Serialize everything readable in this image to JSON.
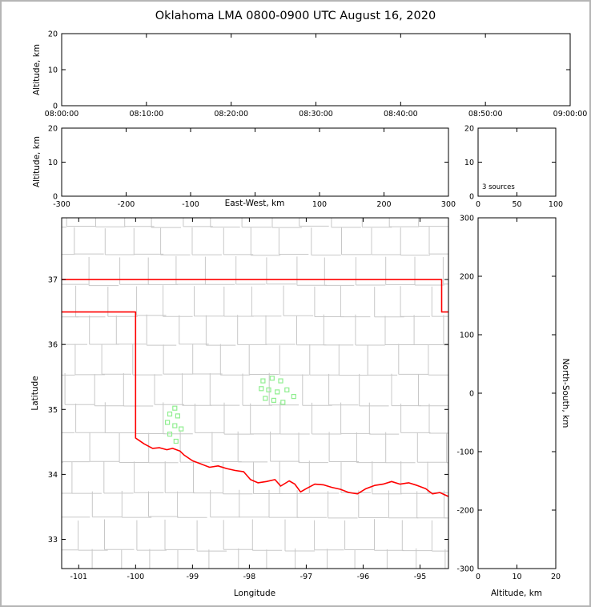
{
  "title": "Oklahoma LMA 0800-0900 UTC August 16, 2020",
  "colors": {
    "background": "#ffffff",
    "frame_border": "#b5b5b5",
    "axis_color": "#000000",
    "county_line_color": "#c8c8c8",
    "state_border_color": "#ff0000",
    "marker_color": "#90ee90"
  },
  "labels": {
    "time_height_ylabel": "Altitude, km",
    "ew_height_ylabel": "Altitude, km",
    "ew_height_xlabel": "East-West, km",
    "map_xlabel": "Longitude",
    "map_ylabel": "Latitude",
    "ns_height_xlabel": "Altitude, km",
    "ns_height_ylabel": "North-South, km"
  },
  "chart_data": [
    {
      "id": "time_height",
      "type": "scatter",
      "x": {
        "range": [
          0,
          3600
        ],
        "ticks": [
          0,
          600,
          1200,
          1800,
          2400,
          3000,
          3600
        ],
        "tick_labels": [
          "08:00:00",
          "08:10:00",
          "08:20:00",
          "08:30:00",
          "08:40:00",
          "08:50:00",
          "09:00:00"
        ]
      },
      "y": {
        "label": "Altitude, km",
        "range": [
          0,
          20
        ],
        "ticks": [
          0,
          10,
          20
        ],
        "tick_labels": [
          "0",
          "10",
          "20"
        ]
      },
      "points": []
    },
    {
      "id": "ew_height",
      "type": "scatter",
      "x": {
        "label": "East-West, km",
        "range": [
          -300,
          300
        ],
        "ticks": [
          -300,
          -200,
          -100,
          0,
          100,
          200,
          300
        ],
        "tick_labels": [
          "-300",
          "-200",
          "-100",
          "",
          "100",
          "200",
          "300"
        ]
      },
      "y": {
        "label": "Altitude, km",
        "range": [
          0,
          20
        ],
        "ticks": [
          0,
          10,
          20
        ],
        "tick_labels": [
          "0",
          "10",
          "20"
        ]
      },
      "points": []
    },
    {
      "id": "source_histogram",
      "type": "scatter",
      "annotation": "3 sources",
      "x": {
        "range": [
          0,
          100
        ],
        "ticks": [
          0,
          50,
          100
        ],
        "tick_labels": [
          "0",
          "50",
          "100"
        ]
      },
      "y": {
        "range": [
          0,
          20
        ],
        "ticks": [
          0,
          10,
          20
        ],
        "tick_labels": [
          "0",
          "10",
          "20"
        ]
      },
      "points": []
    },
    {
      "id": "plan_view_map",
      "type": "scatter",
      "x": {
        "label": "Longitude",
        "range": [
          -101.3,
          -94.5
        ],
        "ticks": [
          -101,
          -100,
          -99,
          -98,
          -97,
          -96,
          -95
        ],
        "tick_labels": [
          "-101",
          "-100",
          "-99",
          "-98",
          "-97",
          "-96",
          "-95"
        ]
      },
      "y": {
        "label": "Latitude",
        "range": [
          32.55,
          37.95
        ],
        "ticks": [
          33,
          34,
          35,
          36,
          37
        ],
        "tick_labels": [
          "33",
          "34",
          "35",
          "36",
          "37"
        ]
      },
      "points": [
        [
          -99.31,
          35.02
        ],
        [
          -99.4,
          34.93
        ],
        [
          -99.26,
          34.9
        ],
        [
          -99.44,
          34.8
        ],
        [
          -99.31,
          34.75
        ],
        [
          -99.2,
          34.7
        ],
        [
          -99.4,
          34.62
        ],
        [
          -99.29,
          34.51
        ],
        [
          -97.76,
          35.44
        ],
        [
          -97.6,
          35.48
        ],
        [
          -97.45,
          35.44
        ],
        [
          -97.79,
          35.32
        ],
        [
          -97.66,
          35.3
        ],
        [
          -97.51,
          35.27
        ],
        [
          -97.34,
          35.3
        ],
        [
          -97.72,
          35.17
        ],
        [
          -97.57,
          35.14
        ],
        [
          -97.41,
          35.11
        ],
        [
          -97.22,
          35.2
        ]
      ],
      "state_boundary": [
        [
          [
            -101.3,
            37.0
          ],
          [
            -94.62,
            37.0
          ],
          [
            -94.62,
            36.5
          ],
          [
            -94.5,
            36.5
          ]
        ],
        [
          [
            -101.3,
            36.5
          ],
          [
            -100.0,
            36.5
          ],
          [
            -100.0,
            34.56
          ],
          [
            -99.95,
            34.53
          ],
          [
            -99.85,
            34.47
          ],
          [
            -99.7,
            34.4
          ],
          [
            -99.58,
            34.41
          ],
          [
            -99.45,
            34.38
          ],
          [
            -99.35,
            34.4
          ],
          [
            -99.22,
            34.36
          ],
          [
            -99.15,
            34.3
          ],
          [
            -99.0,
            34.21
          ],
          [
            -98.85,
            34.16
          ],
          [
            -98.7,
            34.11
          ],
          [
            -98.55,
            34.13
          ],
          [
            -98.4,
            34.09
          ],
          [
            -98.25,
            34.06
          ],
          [
            -98.1,
            34.04
          ],
          [
            -97.98,
            33.92
          ],
          [
            -97.85,
            33.87
          ],
          [
            -97.7,
            33.89
          ],
          [
            -97.55,
            33.92
          ],
          [
            -97.45,
            33.82
          ],
          [
            -97.3,
            33.9
          ],
          [
            -97.2,
            33.85
          ],
          [
            -97.1,
            33.73
          ],
          [
            -97.0,
            33.78
          ],
          [
            -96.85,
            33.85
          ],
          [
            -96.7,
            33.84
          ],
          [
            -96.55,
            33.8
          ],
          [
            -96.4,
            33.77
          ],
          [
            -96.25,
            33.72
          ],
          [
            -96.1,
            33.7
          ],
          [
            -95.95,
            33.78
          ],
          [
            -95.8,
            33.83
          ],
          [
            -95.65,
            33.85
          ],
          [
            -95.5,
            33.89
          ],
          [
            -95.35,
            33.85
          ],
          [
            -95.2,
            33.87
          ],
          [
            -95.05,
            33.83
          ],
          [
            -94.9,
            33.78
          ],
          [
            -94.78,
            33.7
          ],
          [
            -94.65,
            33.72
          ],
          [
            -94.5,
            33.66
          ]
        ]
      ],
      "county_grid": {
        "lon_spacing": 0.52,
        "lat_spacing": 0.45,
        "seed": 12345
      }
    },
    {
      "id": "ns_height",
      "type": "scatter",
      "x": {
        "label": "Altitude, km",
        "range": [
          0,
          20
        ],
        "ticks": [
          0,
          10,
          20
        ],
        "tick_labels": [
          "0",
          "10",
          "20"
        ]
      },
      "y": {
        "label": "North-South, km",
        "range": [
          -300,
          300
        ],
        "ticks": [
          -300,
          -200,
          -100,
          0,
          100,
          200,
          300
        ],
        "tick_labels": [
          "-300",
          "-200",
          "-100",
          "0",
          "100",
          "200",
          "300"
        ]
      },
      "points": []
    }
  ]
}
